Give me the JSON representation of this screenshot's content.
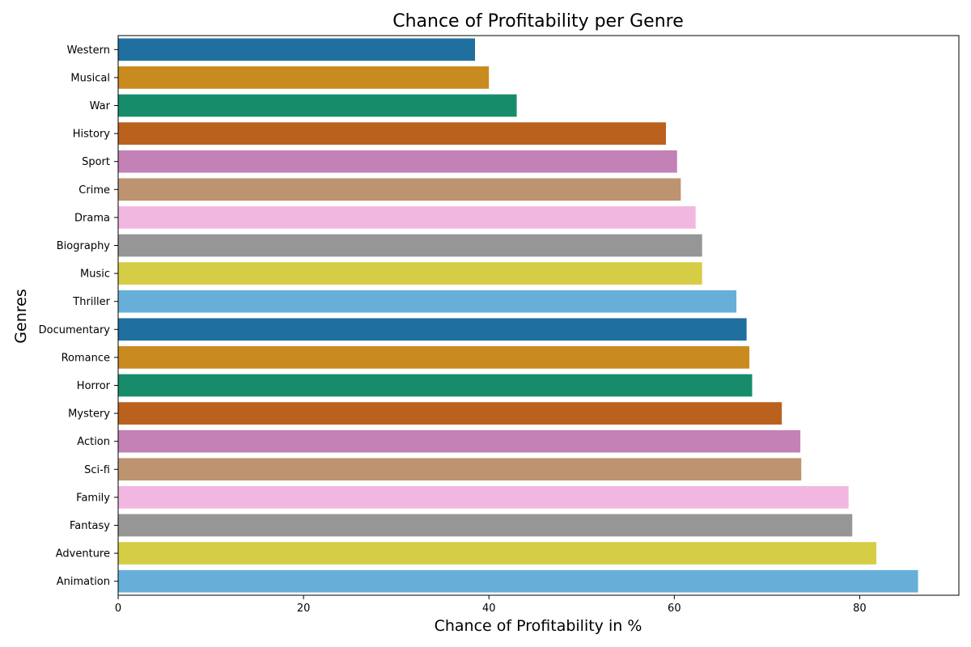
{
  "chart_data": {
    "type": "bar",
    "orientation": "horizontal",
    "title": "Chance of Profitability per Genre",
    "xlabel": "Chance of Profitability in %",
    "ylabel": "Genres",
    "xlim": [
      0,
      90.7
    ],
    "xticks": [
      0,
      20,
      40,
      60,
      80
    ],
    "grid": false,
    "categories": [
      "Western",
      "Musical",
      "War",
      "History",
      "Sport",
      "Crime",
      "Drama",
      "Biography",
      "Music",
      "Thriller",
      "Documentary",
      "Romance",
      "Horror",
      "Mystery",
      "Action",
      "Sci-fi",
      "Family",
      "Fantasy",
      "Adventure",
      "Animation"
    ],
    "values": [
      38.5,
      40.0,
      43.0,
      59.1,
      60.3,
      60.7,
      62.3,
      63.0,
      63.0,
      66.7,
      67.8,
      68.1,
      68.4,
      71.6,
      73.6,
      73.7,
      78.8,
      79.2,
      81.8,
      86.3
    ],
    "colors": [
      "#1f6f9f",
      "#c98a1f",
      "#178c6b",
      "#ba611d",
      "#c481b5",
      "#bd9370",
      "#f2b7e0",
      "#969696",
      "#d6cd47",
      "#67afd9",
      "#1f6f9f",
      "#c98a1f",
      "#178c6b",
      "#ba611d",
      "#c481b5",
      "#bd9370",
      "#f2b7e0",
      "#969696",
      "#d6cd47",
      "#67afd9"
    ]
  }
}
